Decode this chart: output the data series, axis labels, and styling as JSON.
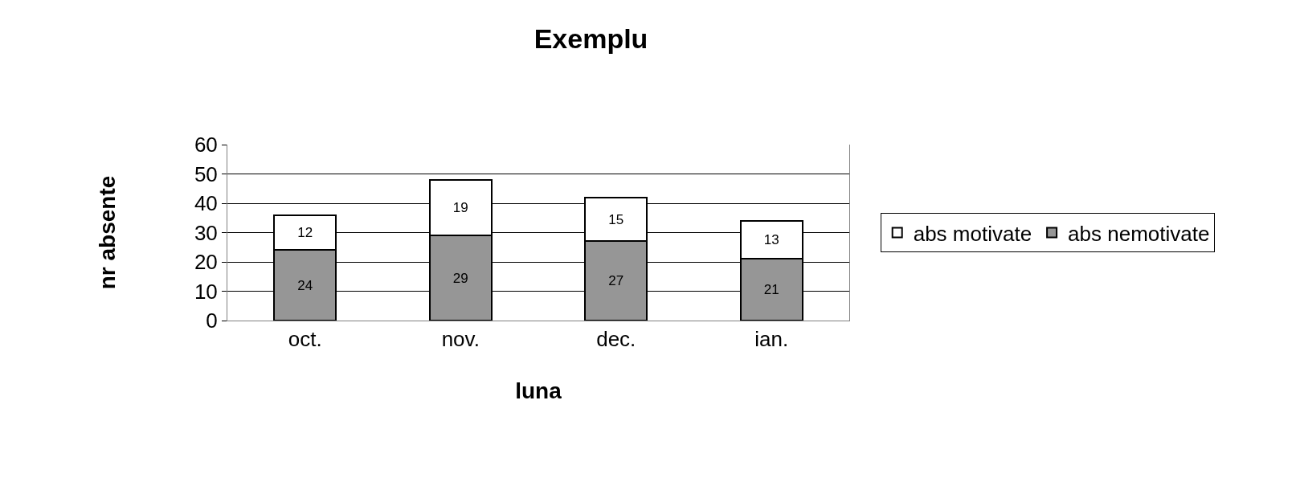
{
  "chart_data": {
    "type": "bar",
    "title": "Exemplu",
    "xlabel": "luna",
    "ylabel": "nr absente",
    "categories": [
      "oct.",
      "nov.",
      "dec.",
      "ian."
    ],
    "stacked": true,
    "series": [
      {
        "name": "abs nemotivate",
        "color": "#969696",
        "values": [
          24,
          29,
          27,
          21
        ]
      },
      {
        "name": "abs motivate",
        "color": "#ffffff",
        "values": [
          12,
          19,
          15,
          13
        ]
      }
    ],
    "ylim": [
      0,
      60
    ],
    "yticks": [
      0,
      10,
      20,
      30,
      40,
      50,
      60
    ],
    "grid": "y",
    "legend": "right",
    "data_labels": true
  }
}
